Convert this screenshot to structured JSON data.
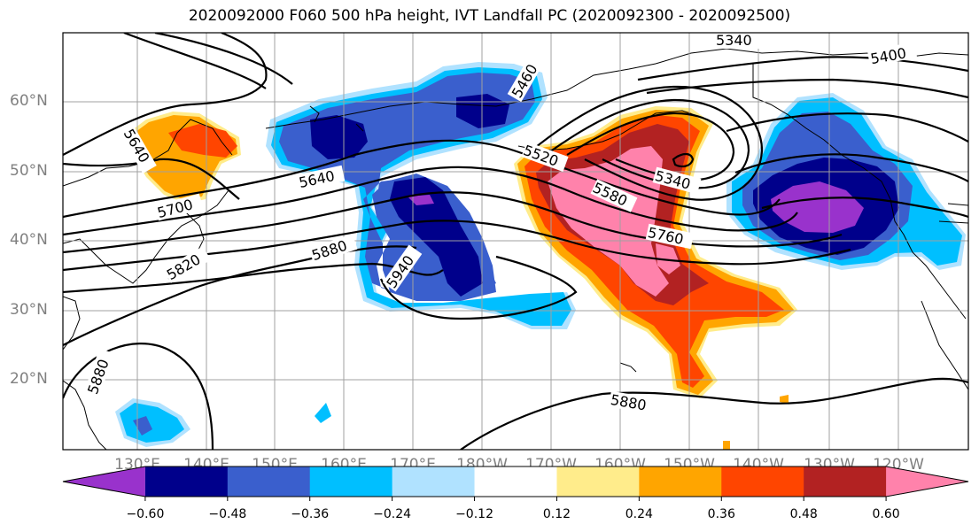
{
  "title": "2020092000 F060 500 hPa height, IVT Landfall PC (2020092300 - 2020092500)",
  "lat_labels": [
    "60°N",
    "50°N",
    "40°N",
    "30°N",
    "20°N"
  ],
  "lon_labels": [
    "130°E",
    "140°E",
    "150°E",
    "160°E",
    "170°E",
    "180°W",
    "170°W",
    "160°W",
    "150°W",
    "140°W",
    "130°W",
    "120°W"
  ],
  "contour_labels": [
    "5340",
    "5400",
    "5460",
    "5520",
    "5580",
    "5640",
    "5640",
    "5700",
    "5760",
    "5820",
    "5880",
    "5880",
    "5880",
    "5940",
    "5340"
  ],
  "colorbar": {
    "tick_labels": [
      "−0.60",
      "−0.48",
      "−0.36",
      "−0.24",
      "−0.12",
      "0.12",
      "0.24",
      "0.36",
      "0.48",
      "0.60"
    ],
    "colors": [
      "#9932cc",
      "#00008b",
      "#3a5fcd",
      "#00bfff",
      "#b0e2ff",
      "#ffffff",
      "#ffec8b",
      "#ffa500",
      "#ff4500",
      "#b22222",
      "#ff82ab"
    ]
  }
}
